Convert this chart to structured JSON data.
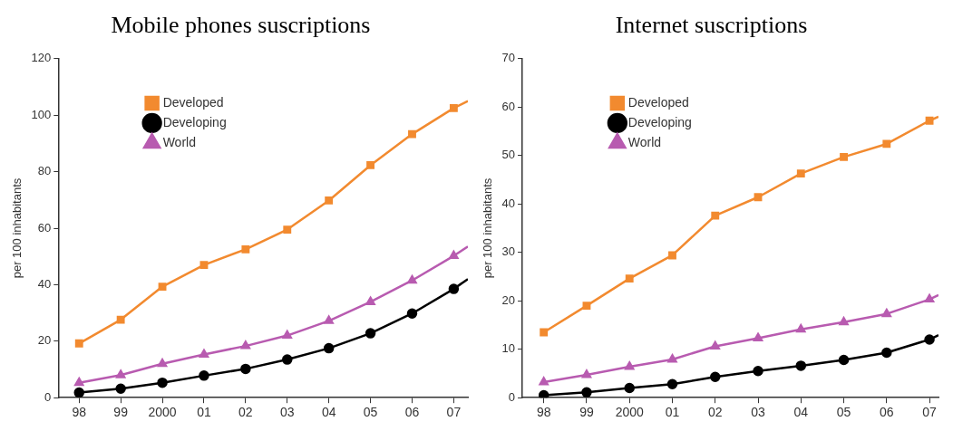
{
  "chart_data": [
    {
      "type": "line",
      "title": "Mobile phones suscriptions",
      "ylabel": "per 100 inhabitants",
      "x": [
        1998,
        1999,
        2000,
        2001,
        2002,
        2003,
        2004,
        2005,
        2006,
        2007,
        2007.34
      ],
      "xlim": [
        1997.5,
        2007.34
      ],
      "xticks": [
        {
          "value": 1998,
          "label": "98"
        },
        {
          "value": 1999,
          "label": "99"
        },
        2000,
        {
          "value": 2001,
          "label": "01"
        },
        {
          "value": 2002,
          "label": "02"
        },
        {
          "value": 2003,
          "label": "03"
        },
        {
          "value": 2004,
          "label": "04"
        },
        {
          "value": 2005,
          "label": "05"
        },
        {
          "value": 2006,
          "label": "06"
        },
        {
          "value": 2007,
          "label": "07"
        }
      ],
      "ylim": [
        0,
        120
      ],
      "yticks": [
        0,
        20,
        40,
        60,
        80,
        100,
        120
      ],
      "grid": false,
      "legend": "top left",
      "series": [
        {
          "name": "Developed",
          "color": "#f28a2f",
          "marker": "square",
          "values": [
            19.2,
            27.6,
            39.3,
            47.0,
            52.5,
            59.5,
            69.8,
            82.3,
            93.3,
            102.5,
            105
          ]
        },
        {
          "name": "Developing",
          "color": "#000000",
          "marker": "circle",
          "values": [
            1.8,
            3.2,
            5.3,
            7.8,
            10.2,
            13.5,
            17.5,
            22.8,
            29.8,
            38.5,
            42
          ]
        },
        {
          "name": "World",
          "color": "#b85bb0",
          "marker": "triangle",
          "values": [
            5.3,
            8.0,
            12.0,
            15.3,
            18.3,
            22.0,
            27.2,
            33.9,
            41.5,
            50.2,
            53.5
          ]
        }
      ]
    },
    {
      "type": "line",
      "title": "Internet suscriptions",
      "ylabel": "per 100 inhabitants",
      "x": [
        1998,
        1999,
        2000,
        2001,
        2002,
        2003,
        2004,
        2005,
        2006,
        2007,
        2007.21
      ],
      "xlim": [
        1997.5,
        2007.21
      ],
      "xticks": [
        {
          "value": 1998,
          "label": "98"
        },
        {
          "value": 1999,
          "label": "99"
        },
        2000,
        {
          "value": 2001,
          "label": "01"
        },
        {
          "value": 2002,
          "label": "02"
        },
        {
          "value": 2003,
          "label": "03"
        },
        {
          "value": 2004,
          "label": "04"
        },
        {
          "value": 2005,
          "label": "05"
        },
        {
          "value": 2006,
          "label": "06"
        },
        {
          "value": 2007,
          "label": "07"
        }
      ],
      "ylim": [
        0,
        70
      ],
      "yticks": [
        0,
        10,
        20,
        30,
        40,
        50,
        60,
        70
      ],
      "grid": false,
      "legend": "top left",
      "series": [
        {
          "name": "Developed",
          "color": "#f28a2f",
          "marker": "square",
          "values": [
            13.5,
            19.0,
            24.6,
            29.4,
            37.6,
            41.4,
            46.3,
            49.7,
            52.4,
            57.2,
            58.0
          ]
        },
        {
          "name": "Developing",
          "color": "#000000",
          "marker": "circle",
          "values": [
            0.5,
            1.1,
            2.0,
            2.8,
            4.3,
            5.5,
            6.6,
            7.8,
            9.3,
            12.0,
            12.9
          ]
        },
        {
          "name": "World",
          "color": "#b85bb0",
          "marker": "triangle",
          "values": [
            3.2,
            4.7,
            6.4,
            7.9,
            10.6,
            12.3,
            14.1,
            15.6,
            17.3,
            20.3,
            21.2
          ]
        }
      ]
    }
  ]
}
